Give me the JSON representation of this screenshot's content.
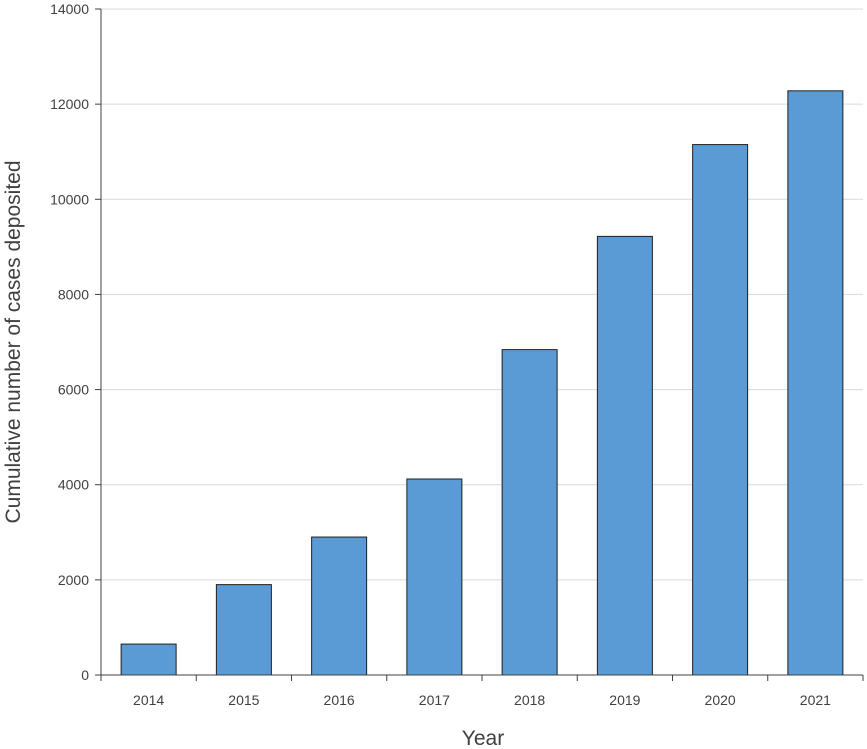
{
  "chart_data": {
    "type": "bar",
    "title": "",
    "xlabel": "Year",
    "ylabel": "Cumulative number of cases deposited",
    "categories": [
      "2014",
      "2015",
      "2016",
      "2017",
      "2018",
      "2019",
      "2020",
      "2021"
    ],
    "values": [
      650,
      1900,
      2900,
      4120,
      6840,
      9220,
      11150,
      12280
    ],
    "ylim": [
      0,
      14000
    ],
    "yticks": [
      0,
      2000,
      4000,
      6000,
      8000,
      10000,
      12000,
      14000
    ],
    "grid": true,
    "legend": "none",
    "bar_color": "#5B9BD5",
    "bar_edge_color": "#1f1f1f",
    "grid_color": "#d9d9d9",
    "axis_color": "#404040"
  }
}
